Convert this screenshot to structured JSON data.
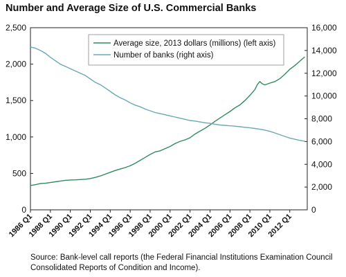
{
  "chart_data": {
    "type": "line",
    "title": "Number and Average Size of U.S. Commercial Banks",
    "source_note": "Source: Bank-level call reports (the Federal Financial Institutions Examination Council Consolidated Reports of Condition and Income).",
    "x_tick_labels": [
      "1986 Q1",
      "1988 Q1",
      "1990 Q1",
      "1992 Q1",
      "1994 Q1",
      "1996 Q1",
      "1998 Q1",
      "2000 Q1",
      "2002 Q1",
      "2004 Q1",
      "2006 Q1",
      "2008 Q1",
      "2010 Q1",
      "2012 Q1"
    ],
    "x_range": [
      1986.0,
      2013.75
    ],
    "y_left": {
      "range": [
        0,
        2500
      ],
      "ticks": [
        0,
        500,
        1000,
        1500,
        2000,
        2500
      ],
      "tick_labels": [
        "0",
        "500",
        "1,000",
        "1,500",
        "2,000",
        "2,500"
      ]
    },
    "y_right": {
      "range": [
        0,
        16000
      ],
      "ticks": [
        0,
        2000,
        4000,
        6000,
        8000,
        10000,
        12000,
        14000,
        16000
      ],
      "tick_labels": [
        "0",
        "2,000",
        "4,000",
        "6,000",
        "8,000",
        "10,000",
        "12,000",
        "14,000",
        "16,000"
      ]
    },
    "grid": false,
    "legend_position": "top-right",
    "series": [
      {
        "name": "Average size, 2013 dollars (millions) (left axis)",
        "axis": "left",
        "color": "#2e8b5e",
        "points": [
          [
            1986.0,
            335
          ],
          [
            1986.5,
            345
          ],
          [
            1987.0,
            360
          ],
          [
            1987.5,
            365
          ],
          [
            1988.0,
            375
          ],
          [
            1988.5,
            385
          ],
          [
            1989.0,
            395
          ],
          [
            1989.5,
            405
          ],
          [
            1990.0,
            410
          ],
          [
            1990.5,
            412
          ],
          [
            1991.0,
            415
          ],
          [
            1991.5,
            420
          ],
          [
            1992.0,
            430
          ],
          [
            1992.5,
            445
          ],
          [
            1993.0,
            465
          ],
          [
            1993.5,
            490
          ],
          [
            1994.0,
            515
          ],
          [
            1994.5,
            540
          ],
          [
            1995.0,
            560
          ],
          [
            1995.5,
            580
          ],
          [
            1996.0,
            605
          ],
          [
            1996.5,
            640
          ],
          [
            1997.0,
            680
          ],
          [
            1997.5,
            720
          ],
          [
            1998.0,
            760
          ],
          [
            1998.5,
            795
          ],
          [
            1999.0,
            810
          ],
          [
            1999.5,
            840
          ],
          [
            2000.0,
            870
          ],
          [
            2000.5,
            910
          ],
          [
            2001.0,
            940
          ],
          [
            2001.5,
            960
          ],
          [
            2002.0,
            990
          ],
          [
            2002.5,
            1040
          ],
          [
            2003.0,
            1080
          ],
          [
            2003.5,
            1120
          ],
          [
            2004.0,
            1165
          ],
          [
            2004.5,
            1215
          ],
          [
            2005.0,
            1260
          ],
          [
            2005.5,
            1305
          ],
          [
            2006.0,
            1350
          ],
          [
            2006.5,
            1400
          ],
          [
            2007.0,
            1440
          ],
          [
            2007.5,
            1500
          ],
          [
            2008.0,
            1570
          ],
          [
            2008.5,
            1650
          ],
          [
            2008.75,
            1720
          ],
          [
            2009.0,
            1760
          ],
          [
            2009.25,
            1730
          ],
          [
            2009.5,
            1715
          ],
          [
            2010.0,
            1740
          ],
          [
            2010.5,
            1760
          ],
          [
            2011.0,
            1800
          ],
          [
            2011.5,
            1860
          ],
          [
            2012.0,
            1930
          ],
          [
            2012.5,
            1980
          ],
          [
            2013.0,
            2040
          ],
          [
            2013.5,
            2100
          ]
        ]
      },
      {
        "name": "Number of banks (right axis)",
        "axis": "right",
        "color": "#6aa8b4",
        "points": [
          [
            1986.0,
            14300
          ],
          [
            1986.5,
            14200
          ],
          [
            1987.0,
            14000
          ],
          [
            1987.5,
            13750
          ],
          [
            1988.0,
            13400
          ],
          [
            1988.5,
            13100
          ],
          [
            1989.0,
            12800
          ],
          [
            1989.5,
            12600
          ],
          [
            1990.0,
            12400
          ],
          [
            1990.5,
            12200
          ],
          [
            1991.0,
            12000
          ],
          [
            1991.5,
            11800
          ],
          [
            1992.0,
            11500
          ],
          [
            1992.5,
            11200
          ],
          [
            1993.0,
            11000
          ],
          [
            1993.5,
            10700
          ],
          [
            1994.0,
            10400
          ],
          [
            1994.5,
            10100
          ],
          [
            1995.0,
            9850
          ],
          [
            1995.5,
            9650
          ],
          [
            1996.0,
            9400
          ],
          [
            1996.5,
            9200
          ],
          [
            1997.0,
            9050
          ],
          [
            1997.5,
            8850
          ],
          [
            1998.0,
            8700
          ],
          [
            1998.5,
            8550
          ],
          [
            1999.0,
            8450
          ],
          [
            1999.5,
            8350
          ],
          [
            2000.0,
            8250
          ],
          [
            2000.5,
            8150
          ],
          [
            2001.0,
            8050
          ],
          [
            2001.5,
            7950
          ],
          [
            2002.0,
            7850
          ],
          [
            2002.5,
            7800
          ],
          [
            2003.0,
            7720
          ],
          [
            2003.5,
            7650
          ],
          [
            2004.0,
            7600
          ],
          [
            2004.5,
            7520
          ],
          [
            2005.0,
            7450
          ],
          [
            2005.5,
            7420
          ],
          [
            2006.0,
            7380
          ],
          [
            2006.5,
            7350
          ],
          [
            2007.0,
            7300
          ],
          [
            2007.5,
            7250
          ],
          [
            2008.0,
            7200
          ],
          [
            2008.5,
            7150
          ],
          [
            2009.0,
            7080
          ],
          [
            2009.5,
            7000
          ],
          [
            2010.0,
            6900
          ],
          [
            2010.5,
            6750
          ],
          [
            2011.0,
            6600
          ],
          [
            2011.5,
            6450
          ],
          [
            2012.0,
            6300
          ],
          [
            2012.5,
            6200
          ],
          [
            2013.0,
            6100
          ],
          [
            2013.5,
            6030
          ]
        ]
      }
    ]
  }
}
